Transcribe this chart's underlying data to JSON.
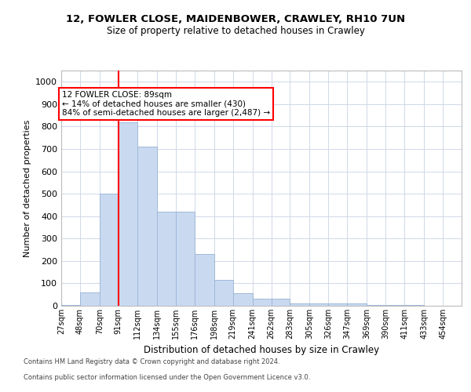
{
  "title1": "12, FOWLER CLOSE, MAIDENBOWER, CRAWLEY, RH10 7UN",
  "title2": "Size of property relative to detached houses in Crawley",
  "xlabel": "Distribution of detached houses by size in Crawley",
  "ylabel": "Number of detached properties",
  "footnote1": "Contains HM Land Registry data © Crown copyright and database right 2024.",
  "footnote2": "Contains public sector information licensed under the Open Government Licence v3.0.",
  "bin_labels": [
    "27sqm",
    "48sqm",
    "70sqm",
    "91sqm",
    "112sqm",
    "134sqm",
    "155sqm",
    "176sqm",
    "198sqm",
    "219sqm",
    "241sqm",
    "262sqm",
    "283sqm",
    "305sqm",
    "326sqm",
    "347sqm",
    "369sqm",
    "390sqm",
    "411sqm",
    "433sqm",
    "454sqm"
  ],
  "bar_values": [
    5,
    60,
    500,
    820,
    710,
    420,
    420,
    230,
    115,
    55,
    30,
    30,
    12,
    12,
    12,
    10,
    5,
    5,
    5,
    0,
    0
  ],
  "bar_color": "#c9d9f0",
  "bar_edge_color": "#a0b8d8",
  "vline_color": "red",
  "grid_color": "#d0d8e8",
  "annotation_title": "12 FOWLER CLOSE: 89sqm",
  "annotation_line1": "← 14% of detached houses are smaller (430)",
  "annotation_line2": "84% of semi-detached houses are larger (2,487) →",
  "annotation_box_color": "white",
  "annotation_box_edge": "red",
  "ylim": [
    0,
    1050
  ],
  "yticks": [
    0,
    100,
    200,
    300,
    400,
    500,
    600,
    700,
    800,
    900,
    1000
  ],
  "bin_edges": [
    27,
    48,
    70,
    91,
    112,
    134,
    155,
    176,
    198,
    219,
    241,
    262,
    283,
    305,
    326,
    347,
    369,
    390,
    411,
    433,
    454,
    475
  ],
  "property_line_x": 91
}
